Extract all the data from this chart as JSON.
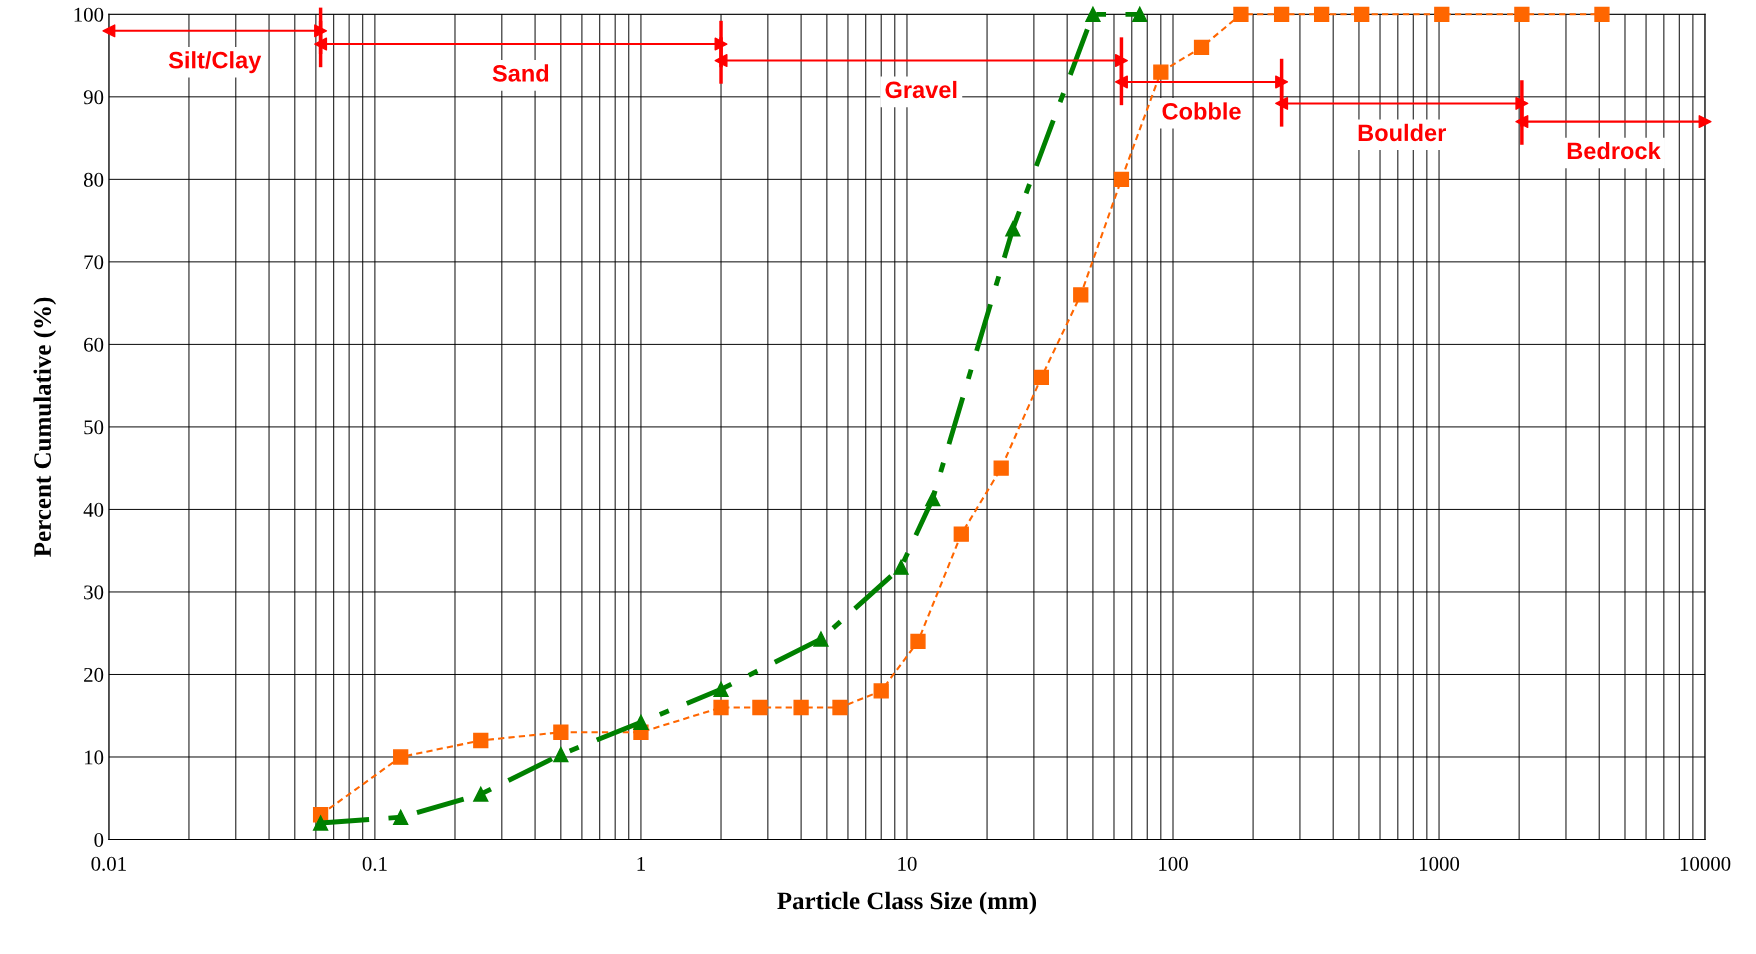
{
  "chart_data": {
    "type": "line",
    "xlabel": "Particle Class Size (mm)",
    "ylabel": "Percent Cumulative (%)",
    "log": "x",
    "xlim": [
      0.01,
      10000
    ],
    "xticks": [
      0.01,
      0.1,
      1,
      10,
      100,
      1000,
      10000
    ],
    "ylim": [
      0,
      100
    ],
    "yticks": [
      0,
      10,
      20,
      30,
      40,
      50,
      60,
      70,
      80,
      90,
      100
    ],
    "grid": true,
    "series": [
      {
        "color": "#ff6600",
        "marker": "square",
        "line_style": "dashed",
        "x": [
          0.0625,
          0.125,
          0.25,
          0.5,
          1,
          2,
          2.8,
          4,
          5.6,
          8,
          11,
          16,
          22.6,
          32,
          45,
          64,
          90,
          128,
          180,
          256,
          362,
          512,
          1024,
          2048,
          4096
        ],
        "values": [
          3,
          10,
          12,
          13,
          13,
          16,
          16,
          16,
          16,
          18,
          24,
          37,
          45,
          56,
          66,
          80,
          93,
          96,
          100,
          100,
          100,
          100,
          100,
          100,
          100
        ]
      },
      {
        "color": "#008000",
        "marker": "triangle",
        "line_style": "dashdot",
        "x": [
          0.0625,
          0.125,
          0.25,
          0.5,
          1,
          2,
          4.75,
          9.5,
          12.5,
          25,
          50,
          75
        ],
        "values": [
          2,
          2.7,
          5.5,
          10.3,
          14.2,
          18.2,
          24.3,
          33,
          41.3,
          74,
          100,
          100
        ]
      },
      {
        "name": "Silt/Clay",
        "color": "#ff0000",
        "marker": "triangle",
        "line_style": "solid",
        "x": [
          0.01,
          0.0625
        ],
        "values": [
          98,
          98
        ]
      },
      {
        "name": "Sand",
        "color": "#ff0000",
        "marker": "triangle",
        "line_style": "solid",
        "x": [
          0.0625,
          2
        ],
        "values": [
          96.4,
          96.4
        ]
      },
      {
        "name": "Gravel",
        "color": "#ff0000",
        "marker": "triangle",
        "line_style": "solid",
        "x": [
          2,
          64
        ],
        "values": [
          94.4,
          94.4
        ]
      },
      {
        "name": "Cobble",
        "color": "#ff0000",
        "marker": "triangle",
        "line_style": "solid",
        "x": [
          64,
          256
        ],
        "values": [
          91.8,
          91.8
        ]
      },
      {
        "name": "Boulder",
        "color": "#ff0000",
        "marker": "triangle",
        "line_style": "solid",
        "x": [
          256,
          2048
        ],
        "values": [
          89.2,
          89.2
        ]
      },
      {
        "name": "Bedrock",
        "color": "#ff0000",
        "marker": "triangle",
        "line_style": "solid",
        "x": [
          2048,
          10000
        ],
        "values": [
          87,
          87
        ]
      }
    ]
  }
}
